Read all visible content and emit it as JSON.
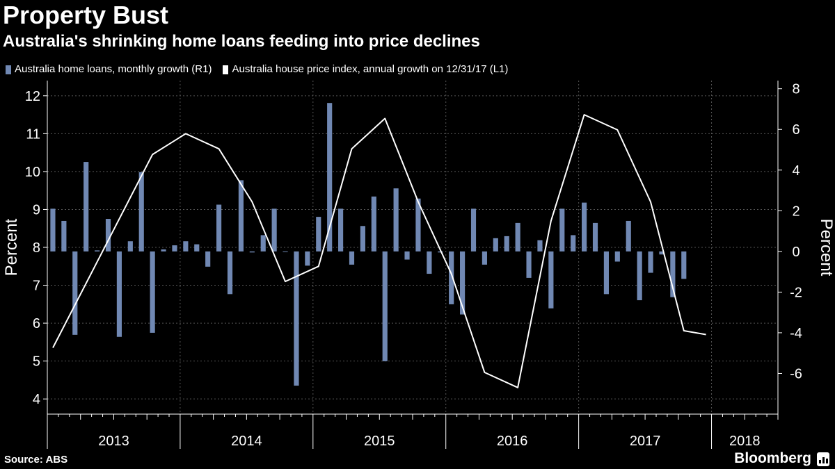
{
  "header": {
    "title": "Property Bust",
    "subtitle": "Australia's shrinking home loans feeding into price declines"
  },
  "footer": {
    "source": "Source: ABS",
    "brand": "Bloomberg"
  },
  "colors": {
    "background": "#000000",
    "bars": "#7088b3",
    "line": "#ffffff",
    "grid": "#555555"
  },
  "chart_data": {
    "type": "bar+line",
    "legend_placement": "top-left",
    "grid": true,
    "x_tick_labels": [
      "2013",
      "2014",
      "2015",
      "2016",
      "2017",
      "2018"
    ],
    "x_range": [
      "2013-01",
      "2018-06"
    ],
    "left_axis": {
      "label": "Percent",
      "range": [
        3.6,
        12.4
      ],
      "ticks": [
        4,
        5,
        6,
        7,
        8,
        9,
        10,
        11,
        12
      ]
    },
    "right_axis": {
      "label": "Percent",
      "range": [
        -8,
        8.4
      ],
      "ticks": [
        -6,
        -4,
        -2,
        0,
        2,
        4,
        6,
        8
      ]
    },
    "series": [
      {
        "name": "Australia home loans, monthly growth (R1)",
        "type": "bar",
        "axis": "right",
        "x_start": "2013-01",
        "frequency": "monthly",
        "values": [
          2.1,
          1.5,
          -4.1,
          4.4,
          0.05,
          1.6,
          -4.2,
          0.5,
          3.9,
          -4.0,
          0.1,
          0.3,
          0.5,
          0.35,
          -0.75,
          2.3,
          -2.1,
          3.5,
          -0.05,
          0.8,
          2.1,
          0.0,
          -6.6,
          -0.7,
          1.7,
          7.3,
          2.1,
          -0.65,
          1.25,
          2.7,
          -5.4,
          3.1,
          -0.4,
          2.6,
          -1.1,
          -0.05,
          -2.6,
          -3.1,
          2.1,
          -0.65,
          0.65,
          0.75,
          1.4,
          -1.3,
          0.55,
          -2.8,
          2.1,
          0.8,
          2.4,
          1.4,
          -2.1,
          -0.5,
          1.5,
          -2.4,
          -1.05,
          -0.15,
          -2.25,
          -1.35
        ]
      },
      {
        "name": "Australia house price index, annual growth on 12/31/17 (L1)",
        "type": "line",
        "axis": "left",
        "x": [
          "2013-01",
          "2013-10",
          "2014-01",
          "2014-04",
          "2014-07",
          "2014-10",
          "2015-01",
          "2015-04",
          "2015-07",
          "2015-10",
          "2016-01",
          "2016-04",
          "2016-07",
          "2016-10",
          "2017-01",
          "2017-04",
          "2017-07",
          "2017-10",
          "2017-12"
        ],
        "values": [
          5.35,
          10.45,
          11.0,
          10.6,
          9.2,
          7.1,
          7.5,
          10.6,
          11.4,
          9.2,
          7.3,
          4.7,
          4.3,
          8.7,
          11.5,
          11.1,
          9.2,
          5.8,
          5.7
        ]
      }
    ]
  }
}
